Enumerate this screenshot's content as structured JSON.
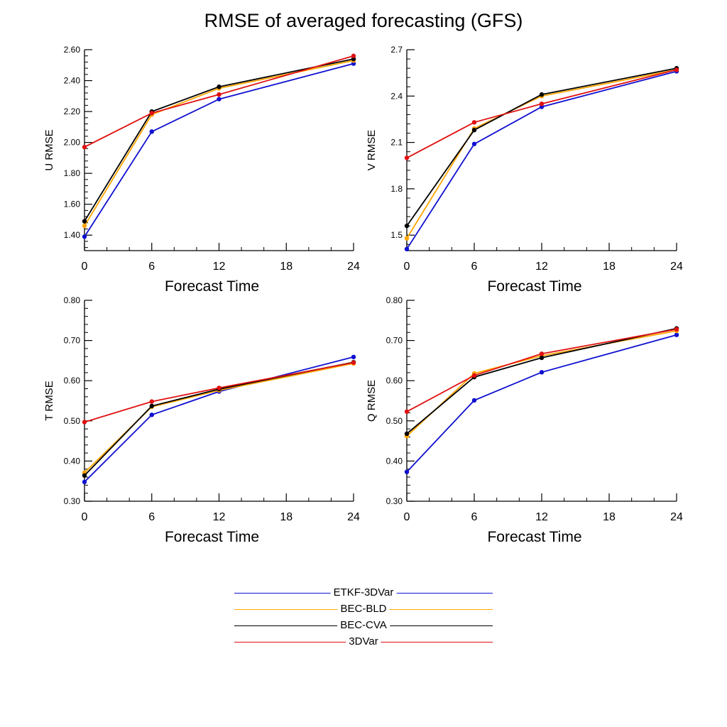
{
  "figure": {
    "title": "RMSE of averaged forecasting (GFS)"
  },
  "legend": [
    {
      "name": "ETKF-3DVar",
      "color": "#1010d0"
    },
    {
      "name": "BEC-BLD",
      "color": "#ffa500"
    },
    {
      "name": "BEC-CVA",
      "color": "#000000"
    },
    {
      "name": "3DVar",
      "color": "#e01010"
    }
  ],
  "chart_data": [
    {
      "type": "line",
      "xlabel": "Forecast Time",
      "ylabel": "U RMSE",
      "xlim": [
        0,
        24
      ],
      "ylim": [
        1.3,
        2.6
      ],
      "xticks": [
        0,
        6,
        12,
        18,
        24
      ],
      "xtick_labels": [
        "0",
        "6",
        "12",
        "18",
        "24"
      ],
      "yticks": [
        1.4,
        1.6,
        1.8,
        2.0,
        2.2,
        2.4,
        2.6
      ],
      "ytick_labels": [
        "1.40",
        "1.60",
        "1.80",
        "2.00",
        "2.20",
        "2.40",
        "2.60"
      ],
      "x": [
        0,
        6,
        12,
        24
      ],
      "series": [
        {
          "name": "ETKF-3DVar",
          "values": [
            1.39,
            2.07,
            2.28,
            2.51
          ]
        },
        {
          "name": "BEC-BLD",
          "values": [
            1.46,
            2.18,
            2.35,
            2.53
          ]
        },
        {
          "name": "BEC-CVA",
          "values": [
            1.49,
            2.2,
            2.36,
            2.54
          ]
        },
        {
          "name": "3DVar",
          "values": [
            1.97,
            2.19,
            2.31,
            2.56
          ]
        }
      ]
    },
    {
      "type": "line",
      "xlabel": "Forecast Time",
      "ylabel": "V RMSE",
      "xlim": [
        0,
        24
      ],
      "ylim": [
        1.4,
        2.7
      ],
      "xticks": [
        0,
        6,
        12,
        18,
        24
      ],
      "xtick_labels": [
        "0",
        "6",
        "12",
        "18",
        "24"
      ],
      "yticks": [
        1.5,
        1.8,
        2.1,
        2.4,
        2.7
      ],
      "ytick_labels": [
        "1.5",
        "1.8",
        "2.1",
        "2.4",
        "2.7"
      ],
      "x": [
        0,
        6,
        12,
        24
      ],
      "series": [
        {
          "name": "ETKF-3DVar",
          "values": [
            1.41,
            2.09,
            2.33,
            2.56
          ]
        },
        {
          "name": "BEC-BLD",
          "values": [
            1.48,
            2.19,
            2.4,
            2.57
          ]
        },
        {
          "name": "BEC-CVA",
          "values": [
            1.56,
            2.18,
            2.41,
            2.58
          ]
        },
        {
          "name": "3DVar",
          "values": [
            2.0,
            2.23,
            2.35,
            2.57
          ]
        }
      ]
    },
    {
      "type": "line",
      "xlabel": "Forecast Time",
      "ylabel": "T RMSE",
      "xlim": [
        0,
        24
      ],
      "ylim": [
        0.3,
        0.8
      ],
      "xticks": [
        0,
        6,
        12,
        18,
        24
      ],
      "xtick_labels": [
        "0",
        "6",
        "12",
        "18",
        "24"
      ],
      "yticks": [
        0.3,
        0.4,
        0.5,
        0.6,
        0.7,
        0.8
      ],
      "ytick_labels": [
        "0.30",
        "0.40",
        "0.50",
        "0.60",
        "0.70",
        "0.80"
      ],
      "x": [
        0,
        6,
        12,
        24
      ],
      "series": [
        {
          "name": "ETKF-3DVar",
          "values": [
            0.348,
            0.515,
            0.573,
            0.659
          ]
        },
        {
          "name": "BEC-BLD",
          "values": [
            0.371,
            0.535,
            0.576,
            0.643
          ]
        },
        {
          "name": "BEC-CVA",
          "values": [
            0.364,
            0.537,
            0.579,
            0.646
          ]
        },
        {
          "name": "3DVar",
          "values": [
            0.497,
            0.548,
            0.582,
            0.645
          ]
        }
      ]
    },
    {
      "type": "line",
      "xlabel": "Forecast Time",
      "ylabel": "Q RMSE",
      "xlim": [
        0,
        24
      ],
      "ylim": [
        0.3,
        0.8
      ],
      "xticks": [
        0,
        6,
        12,
        18,
        24
      ],
      "xtick_labels": [
        "0",
        "6",
        "12",
        "18",
        "24"
      ],
      "yticks": [
        0.3,
        0.4,
        0.5,
        0.6,
        0.7,
        0.8
      ],
      "ytick_labels": [
        "0.30",
        "0.40",
        "0.50",
        "0.60",
        "0.70",
        "0.80"
      ],
      "x": [
        0,
        6,
        12,
        24
      ],
      "series": [
        {
          "name": "ETKF-3DVar",
          "values": [
            0.373,
            0.551,
            0.621,
            0.714
          ]
        },
        {
          "name": "BEC-BLD",
          "values": [
            0.462,
            0.618,
            0.662,
            0.724
          ]
        },
        {
          "name": "BEC-CVA",
          "values": [
            0.468,
            0.609,
            0.657,
            0.73
          ]
        },
        {
          "name": "3DVar",
          "values": [
            0.523,
            0.613,
            0.667,
            0.728
          ]
        }
      ]
    }
  ]
}
